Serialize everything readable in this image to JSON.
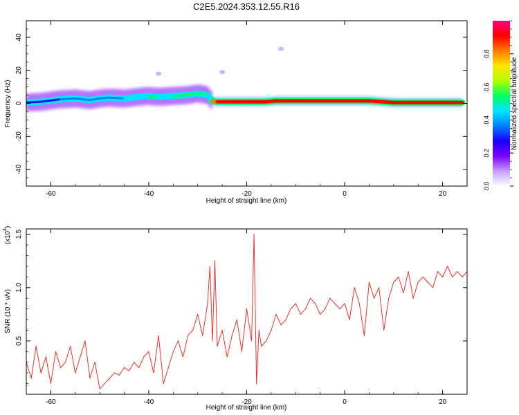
{
  "figure_title": "C2E5.2024.353.12.55.R16",
  "colorbar": {
    "label": "Normalized spectral amplitude",
    "ticks": [
      "0.0",
      "0.2",
      "0.4",
      "0.6",
      "0.8"
    ],
    "tick_values": [
      0.0,
      0.2,
      0.4,
      0.6,
      0.8
    ],
    "colors": [
      "#ffffff",
      "#c79bff",
      "#7a00ff",
      "#1a00ff",
      "#0080ff",
      "#00e5ff",
      "#00ff60",
      "#b0ff00",
      "#ffe600",
      "#ff7a00",
      "#ff0000",
      "#ff0080"
    ]
  },
  "chart_data": [
    {
      "type": "heatmap",
      "title": "C2E5.2024.353.12.55.R16",
      "xlabel": "Height of straight line (km)",
      "ylabel": "Frequency (Hz)",
      "xlim": [
        -65,
        25
      ],
      "ylim": [
        -50,
        50
      ],
      "xticks": [
        -60,
        -40,
        -20,
        0,
        20
      ],
      "xtick_labels": [
        "-60",
        "-40",
        "-20",
        "0",
        "20"
      ],
      "yticks": [
        -40,
        -20,
        0,
        20,
        40
      ],
      "ytick_labels": [
        "-40",
        "-20",
        "0",
        "20",
        "40"
      ],
      "ridge": {
        "x": [
          -65,
          -62,
          -58,
          -55,
          -52,
          -50,
          -48,
          -45,
          -42,
          -40,
          -38,
          -35,
          -32,
          -30,
          -28,
          -27,
          -26,
          -25,
          -22,
          -20,
          -18,
          -16,
          -14,
          -10,
          -5,
          0,
          5,
          10,
          15,
          20,
          24
        ],
        "y": [
          0.5,
          1.0,
          2.5,
          3.0,
          2.0,
          3.0,
          3.5,
          3.0,
          4.0,
          4.5,
          4.0,
          4.5,
          5.0,
          6.0,
          5.0,
          1.5,
          1.0,
          1.0,
          1.0,
          1.0,
          1.0,
          1.0,
          1.5,
          1.5,
          1.5,
          1.5,
          1.5,
          0.5,
          0.5,
          0.5,
          0.5
        ],
        "amplitude": [
          0.25,
          0.3,
          0.35,
          0.4,
          0.35,
          0.4,
          0.4,
          0.45,
          0.45,
          0.5,
          0.45,
          0.5,
          0.55,
          0.5,
          0.45,
          0.85,
          0.9,
          0.95,
          0.95,
          0.9,
          0.95,
          0.9,
          0.95,
          0.95,
          0.9,
          0.95,
          0.95,
          0.9,
          0.95,
          0.95,
          0.95
        ]
      },
      "isolated_blobs": [
        {
          "x": -13,
          "y": 33,
          "amplitude": 0.1
        },
        {
          "x": -25,
          "y": 19,
          "amplitude": 0.1
        },
        {
          "x": -38,
          "y": 18,
          "amplitude": 0.15
        }
      ]
    },
    {
      "type": "line",
      "xlabel": "Height of straight line (km)",
      "ylabel": "SNR (10 * v/v)",
      "scale_label": "(x10",
      "scale_exponent": "4",
      "xlim": [
        -65,
        25
      ],
      "ylim": [
        0,
        1.55
      ],
      "xticks": [
        -60,
        -40,
        -20,
        0,
        20
      ],
      "xtick_labels": [
        "-60",
        "-40",
        "-20",
        "0",
        "20"
      ],
      "yticks": [
        0.5,
        1.0,
        1.5
      ],
      "ytick_labels": [
        "0.5",
        "1.0",
        "1.5"
      ],
      "series": [
        {
          "color": "#e8302a",
          "x": [
            -65,
            -64,
            -63,
            -62,
            -61,
            -60,
            -59,
            -58,
            -57,
            -56,
            -55,
            -54,
            -53,
            -52,
            -51,
            -50,
            -49,
            -48,
            -47,
            -46,
            -45,
            -44,
            -43,
            -42,
            -41,
            -40,
            -39,
            -38,
            -37,
            -36,
            -35,
            -34,
            -33,
            -32,
            -31,
            -30,
            -29,
            -28,
            -27.5,
            -27,
            -26.5,
            -26,
            -25,
            -24,
            -23,
            -22,
            -21,
            -20,
            -19,
            -18.5,
            -18,
            -17.5,
            -17,
            -16,
            -15,
            -14,
            -13,
            -12,
            -11,
            -10,
            -9,
            -8,
            -7,
            -6,
            -5,
            -4,
            -3,
            -2,
            -1,
            0,
            1,
            2,
            3,
            4,
            5,
            6,
            7,
            8,
            9,
            10,
            11,
            12,
            13,
            14,
            15,
            16,
            17,
            18,
            19,
            20,
            21,
            22,
            23,
            24,
            25
          ],
          "y": [
            0.3,
            0.15,
            0.45,
            0.2,
            0.35,
            0.1,
            0.4,
            0.25,
            0.3,
            0.45,
            0.2,
            0.35,
            0.5,
            0.15,
            0.3,
            0.05,
            0.1,
            0.15,
            0.2,
            0.18,
            0.25,
            0.22,
            0.3,
            0.25,
            0.35,
            0.4,
            0.2,
            0.55,
            0.1,
            0.25,
            0.4,
            0.5,
            0.35,
            0.55,
            0.6,
            0.75,
            0.55,
            0.85,
            1.2,
            0.5,
            1.25,
            0.45,
            0.6,
            0.35,
            0.55,
            0.7,
            0.4,
            0.8,
            0.5,
            1.5,
            0.1,
            0.6,
            0.45,
            0.5,
            0.6,
            0.75,
            0.65,
            0.7,
            0.8,
            0.85,
            0.75,
            0.8,
            0.9,
            0.85,
            0.75,
            0.8,
            0.9,
            0.85,
            0.8,
            0.85,
            0.7,
            1.0,
            0.85,
            0.55,
            1.05,
            0.9,
            1.0,
            0.6,
            0.9,
            1.05,
            1.1,
            0.95,
            1.15,
            0.9,
            1.05,
            1.1,
            1.05,
            1.0,
            1.15,
            1.1,
            1.2,
            1.1,
            1.15,
            1.1,
            1.15
          ]
        }
      ]
    }
  ]
}
